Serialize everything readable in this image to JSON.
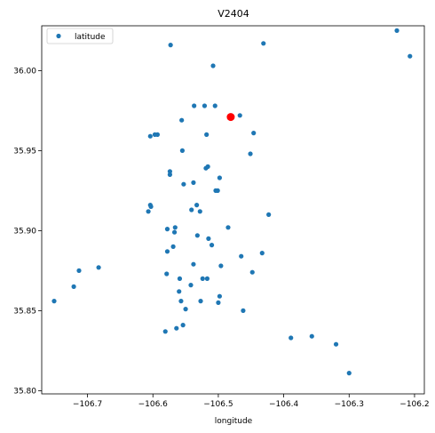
{
  "chart_data": {
    "type": "scatter",
    "title": "V2404",
    "xlabel": "longitude",
    "ylabel": "",
    "xlim": [
      -106.77,
      -106.185
    ],
    "ylim": [
      35.798,
      36.028
    ],
    "x_ticks": [
      -106.7,
      -106.6,
      -106.5,
      -106.4,
      -106.3,
      -106.2
    ],
    "x_tick_labels": [
      "−106.7",
      "−106.6",
      "−106.5",
      "−106.4",
      "−106.3",
      "−106.2"
    ],
    "y_ticks": [
      35.8,
      35.85,
      35.9,
      35.95,
      36.0
    ],
    "y_tick_labels": [
      "35.80",
      "35.85",
      "35.90",
      "35.95",
      "36.00"
    ],
    "grid": false,
    "legend": {
      "position": "top-left",
      "entries": [
        "latitude"
      ]
    },
    "colors": {
      "series": "#1f77b4",
      "highlight": "#ff0000"
    },
    "series": [
      {
        "name": "latitude",
        "points": [
          [
            -106.227,
            36.025
          ],
          [
            -106.207,
            36.009
          ],
          [
            -106.573,
            36.016
          ],
          [
            -106.431,
            36.017
          ],
          [
            -106.508,
            36.003
          ],
          [
            -106.537,
            35.978
          ],
          [
            -106.521,
            35.978
          ],
          [
            -106.505,
            35.978
          ],
          [
            -106.467,
            35.972
          ],
          [
            -106.556,
            35.969
          ],
          [
            -106.604,
            35.959
          ],
          [
            -106.597,
            35.96
          ],
          [
            -106.593,
            35.96
          ],
          [
            -106.518,
            35.96
          ],
          [
            -106.446,
            35.961
          ],
          [
            -106.555,
            35.95
          ],
          [
            -106.451,
            35.948
          ],
          [
            -106.519,
            35.939
          ],
          [
            -106.516,
            35.94
          ],
          [
            -106.574,
            35.937
          ],
          [
            -106.574,
            35.935
          ],
          [
            -106.498,
            35.933
          ],
          [
            -106.538,
            35.93
          ],
          [
            -106.553,
            35.929
          ],
          [
            -106.504,
            35.925
          ],
          [
            -106.501,
            35.925
          ],
          [
            -106.604,
            35.916
          ],
          [
            -106.603,
            35.915
          ],
          [
            -106.533,
            35.916
          ],
          [
            -106.541,
            35.913
          ],
          [
            -106.528,
            35.912
          ],
          [
            -106.607,
            35.912
          ],
          [
            -106.423,
            35.91
          ],
          [
            -106.485,
            35.902
          ],
          [
            -106.566,
            35.902
          ],
          [
            -106.578,
            35.901
          ],
          [
            -106.567,
            35.899
          ],
          [
            -106.532,
            35.897
          ],
          [
            -106.515,
            35.895
          ],
          [
            -106.51,
            35.891
          ],
          [
            -106.569,
            35.89
          ],
          [
            -106.578,
            35.887
          ],
          [
            -106.433,
            35.886
          ],
          [
            -106.465,
            35.884
          ],
          [
            -106.538,
            35.879
          ],
          [
            -106.496,
            35.878
          ],
          [
            -106.683,
            35.877
          ],
          [
            -106.713,
            35.875
          ],
          [
            -106.448,
            35.874
          ],
          [
            -106.579,
            35.873
          ],
          [
            -106.559,
            35.87
          ],
          [
            -106.524,
            35.87
          ],
          [
            -106.517,
            35.87
          ],
          [
            -106.542,
            35.866
          ],
          [
            -106.721,
            35.865
          ],
          [
            -106.56,
            35.862
          ],
          [
            -106.498,
            35.859
          ],
          [
            -106.751,
            35.856
          ],
          [
            -106.557,
            35.856
          ],
          [
            -106.527,
            35.856
          ],
          [
            -106.5,
            35.855
          ],
          [
            -106.55,
            35.851
          ],
          [
            -106.462,
            35.85
          ],
          [
            -106.554,
            35.841
          ],
          [
            -106.564,
            35.839
          ],
          [
            -106.581,
            35.837
          ],
          [
            -106.357,
            35.834
          ],
          [
            -106.389,
            35.833
          ],
          [
            -106.32,
            35.829
          ],
          [
            -106.3,
            35.811
          ]
        ]
      },
      {
        "name": "",
        "points": [
          [
            -106.481,
            35.971
          ]
        ]
      }
    ]
  }
}
